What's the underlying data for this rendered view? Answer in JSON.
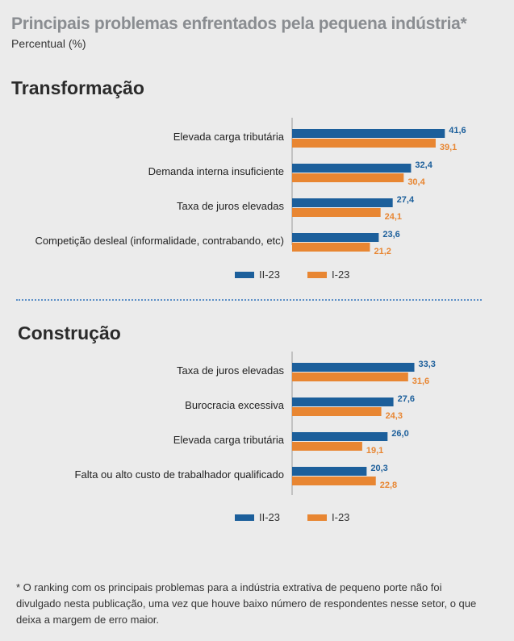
{
  "title": "Principais problemas enfrentados pela pequena indústria*",
  "subtitle": "Percentual (%)",
  "colors": {
    "series1": "#1c5f9b",
    "series2": "#e88632"
  },
  "chart_data": [
    {
      "type": "bar",
      "orientation": "horizontal",
      "title": "Transformação",
      "categories": [
        "Elevada carga tributária",
        "Demanda interna insuficiente",
        "Taxa de juros elevadas",
        "Competição desleal (informalidade, contrabando, etc)"
      ],
      "series": [
        {
          "name": "II-23",
          "values": [
            41.6,
            32.4,
            27.4,
            23.6
          ],
          "labels": [
            "41,6",
            "32,4",
            "27,4",
            "23,6"
          ]
        },
        {
          "name": "I-23",
          "values": [
            39.1,
            30.4,
            24.1,
            21.2
          ],
          "labels": [
            "39,1",
            "30,4",
            "24,1",
            "21,2"
          ]
        }
      ],
      "legend_position": "bottom"
    },
    {
      "type": "bar",
      "orientation": "horizontal",
      "title": "Construção",
      "categories": [
        "Taxa de juros elevadas",
        "Burocracia excessiva",
        "Elevada carga tributária",
        "Falta ou alto custo de trabalhador qualificado"
      ],
      "series": [
        {
          "name": "II-23",
          "values": [
            33.3,
            27.6,
            26.0,
            20.3
          ],
          "labels": [
            "33,3",
            "27,6",
            "26,0",
            "20,3"
          ]
        },
        {
          "name": "I-23",
          "values": [
            31.6,
            24.3,
            19.1,
            22.8
          ],
          "labels": [
            "31,6",
            "24,3",
            "19,1",
            "22,8"
          ]
        }
      ],
      "legend_position": "bottom"
    }
  ],
  "footnote": "* O ranking com os principais problemas para a indústria extrativa de pequeno porte não foi divulgado nesta publicação, uma vez que houve baixo número de respondentes nesse setor, o que deixa a margem de erro maior."
}
